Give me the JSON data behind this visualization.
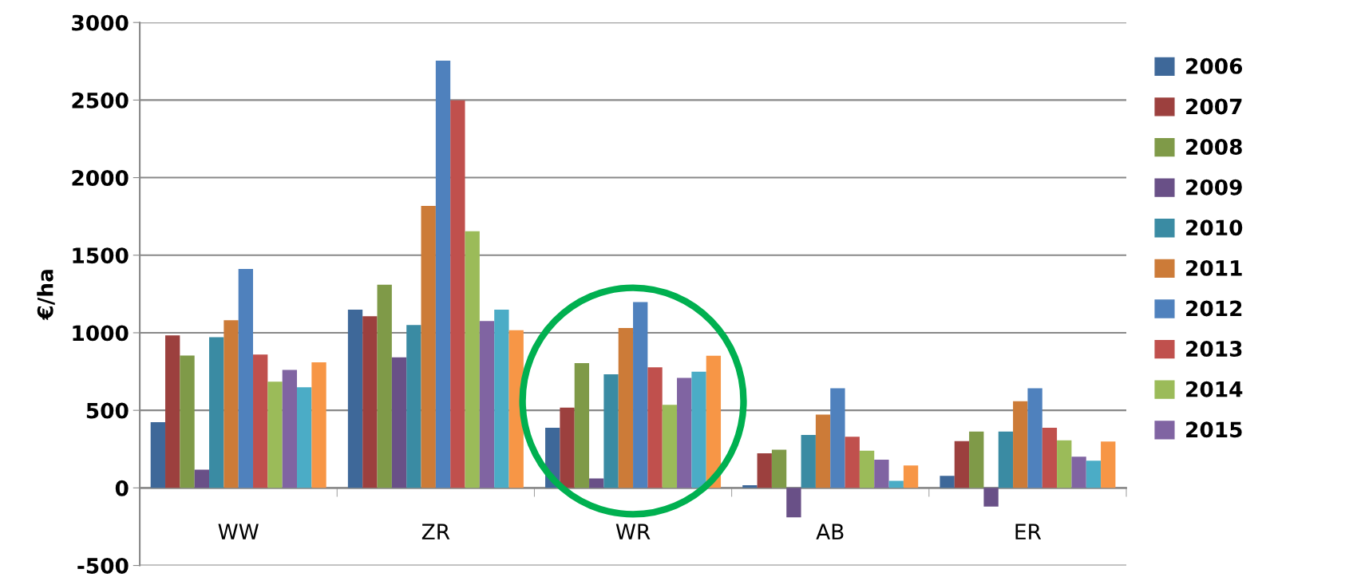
{
  "chart_data": {
    "type": "bar",
    "ylabel": "€/ha",
    "categories": [
      "WW",
      "ZR",
      "WR",
      "AB",
      "ER"
    ],
    "series": [
      {
        "name": "2006",
        "color": "#3e6899",
        "values": [
          424,
          1149,
          388,
          17,
          78
        ]
      },
      {
        "name": "2007",
        "color": "#9c403e",
        "values": [
          983,
          1107,
          517,
          223,
          302
        ]
      },
      {
        "name": "2008",
        "color": "#7f9a48",
        "values": [
          853,
          1310,
          804,
          246,
          363
        ]
      },
      {
        "name": "2009",
        "color": "#695087",
        "values": [
          118,
          841,
          61,
          -190,
          -120
        ]
      },
      {
        "name": "2010",
        "color": "#3a8ba3",
        "values": [
          972,
          1050,
          732,
          341,
          363
        ]
      },
      {
        "name": "2011",
        "color": "#cc7b38",
        "values": [
          1081,
          1818,
          1031,
          472,
          559
        ]
      },
      {
        "name": "2012",
        "color": "#4f81bd",
        "values": [
          1412,
          2754,
          1198,
          642,
          642
        ]
      },
      {
        "name": "2013",
        "color": "#c0504d",
        "values": [
          860,
          2498,
          777,
          330,
          388
        ]
      },
      {
        "name": "2014",
        "color": "#9bbb59",
        "values": [
          685,
          1654,
          536,
          240,
          307
        ]
      },
      {
        "name": "2015",
        "color": "#8064a2",
        "values": [
          761,
          1076,
          709,
          182,
          201
        ]
      },
      {
        "color": "#4bacc6",
        "values": [
          649,
          1149,
          749,
          45,
          176
        ]
      },
      {
        "color": "#f79646",
        "values": [
          810,
          1017,
          852,
          145,
          299
        ]
      }
    ],
    "ylim": [
      -500,
      3000
    ],
    "yticks": [
      -500,
      0,
      500,
      1000,
      1500,
      2000,
      2500,
      3000
    ],
    "grid": "y",
    "legend": "right"
  }
}
